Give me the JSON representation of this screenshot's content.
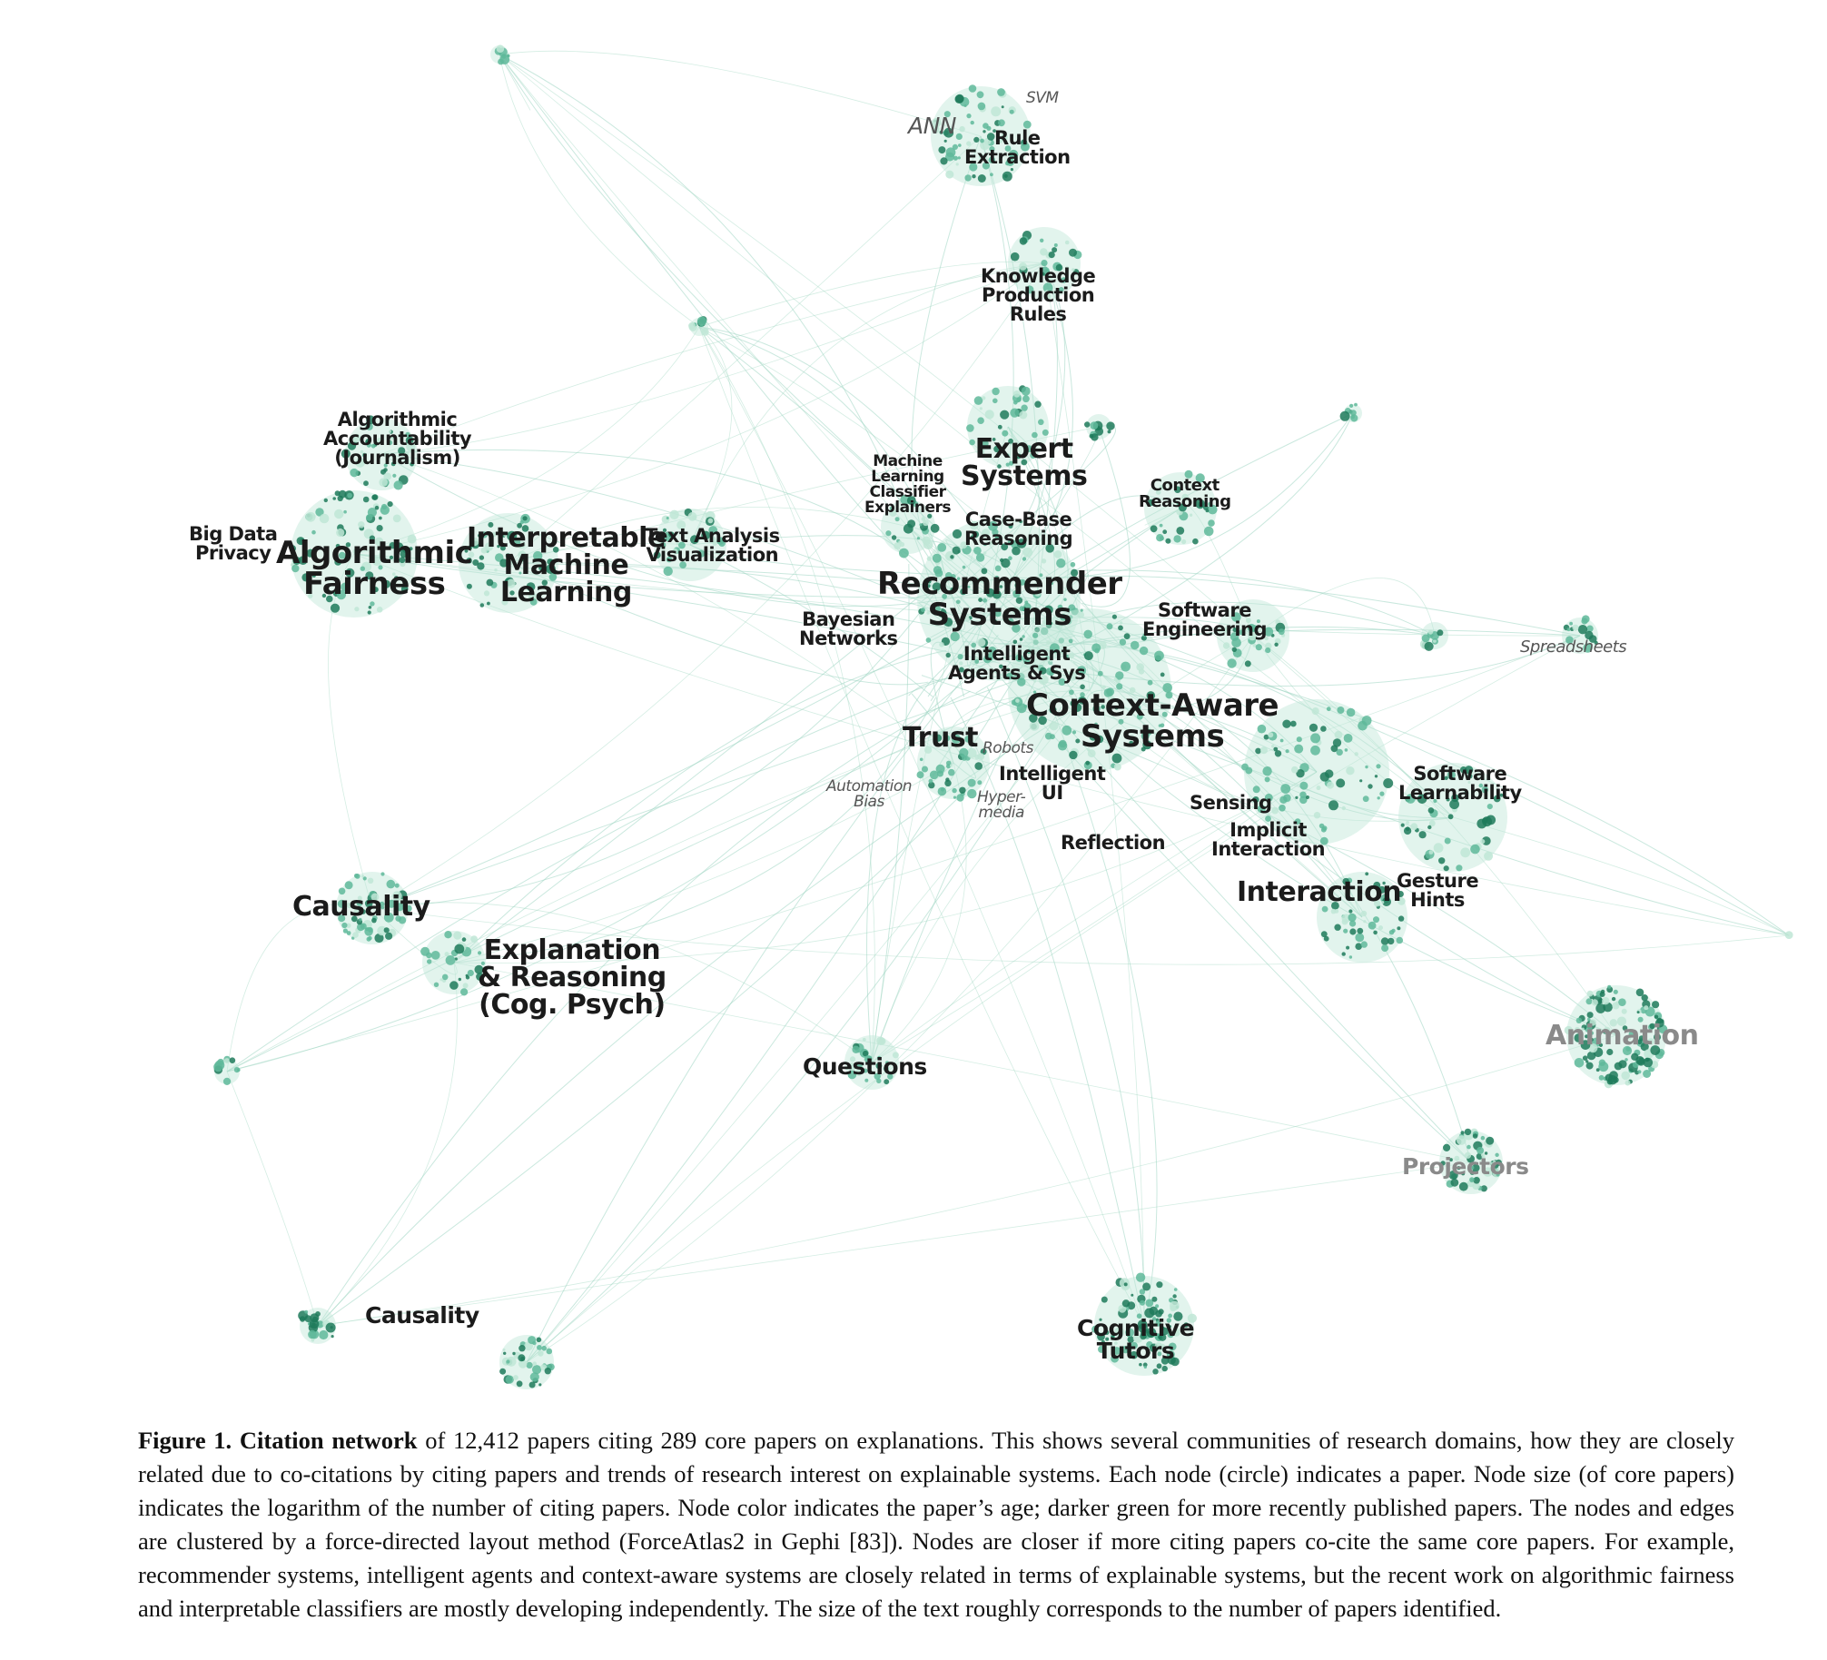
{
  "labels": {
    "ann": "ANN",
    "svm": "SVM",
    "rule_extraction": "Rule\nExtraction",
    "knowledge_production_rules": "Knowledge\nProduction\nRules",
    "expert_systems": "Expert\nSystems",
    "ml_classifier_explainers": "Machine\nLearning\nClassifier\nExplainers",
    "case_base_reasoning": "Case-Base\nReasoning",
    "context_reasoning": "Context\nReasoning",
    "algorithmic_accountability": "Algorithmic\nAccountability\n(Journalism)",
    "big_data_privacy": "Big Data\nPrivacy",
    "algorithmic_fairness": "Algorithmic\nFairness",
    "interpretable_ml": "Interpretable\nMachine\nLearning",
    "text_analysis_visualization": "Text Analysis\nVisualization",
    "recommender_systems": "Recommender\nSystems",
    "bayesian_networks": "Bayesian\nNetworks",
    "software_engineering": "Software\nEngineering",
    "spreadsheets": "Spreadsheets",
    "intelligent_agents": "Intelligent\nAgents & Sys",
    "context_aware_systems": "Context-Aware\nSystems",
    "trust": "Trust",
    "robots": "Robots",
    "intelligent_ui": "Intelligent\nUI",
    "automation_bias": "Automation\nBias",
    "hypermedia": "Hyper-\nmedia",
    "software_learnability": "Software\nLearnability",
    "sensing": "Sensing",
    "implicit_interaction": "Implicit\nInteraction",
    "reflection": "Reflection",
    "interaction": "Interaction",
    "gesture_hints": "Gesture\nHints",
    "causality_top": "Causality",
    "explanation_reasoning": "Explanation\n& Reasoning\n(Cog. Psych)",
    "questions": "Questions",
    "animation": "Animation",
    "projectors": "Projectors",
    "causality_bottom": "Causality",
    "cognitive_tutors": "Cognitive\nTutors"
  },
  "caption": {
    "lead": "Figure 1. Citation network",
    "body": " of 12,412 papers citing 289 core papers on explanations. This shows several communities of research domains, how they are closely related due to co-citations by citing papers and trends of research interest on explainable systems. Each node (circle) indicates a paper. Node size (of core papers) indicates the logarithm of the number of citing papers. Node color indicates the paper’s age; darker green for more recently published papers. The nodes and edges are clustered by a force-directed layout method (ForceAtlas2 in Gephi [83]). Nodes are closer if more citing papers co-cite the same core papers. For example, recommender systems, intelligent agents and context-aware systems are closely related in terms of explainable systems, but the recent work on algorithmic fairness and interpretable classifiers are mostly developing independently. The size of the text roughly corresponds to the number of papers identified."
  },
  "colors": {
    "edge": "#9fd6c2",
    "node_light": "#bfe6d6",
    "node_mid": "#5fb89a",
    "node_dark": "#1f7a5a",
    "label": "#1b1b1b",
    "label_faded": "#8a8a8a"
  }
}
